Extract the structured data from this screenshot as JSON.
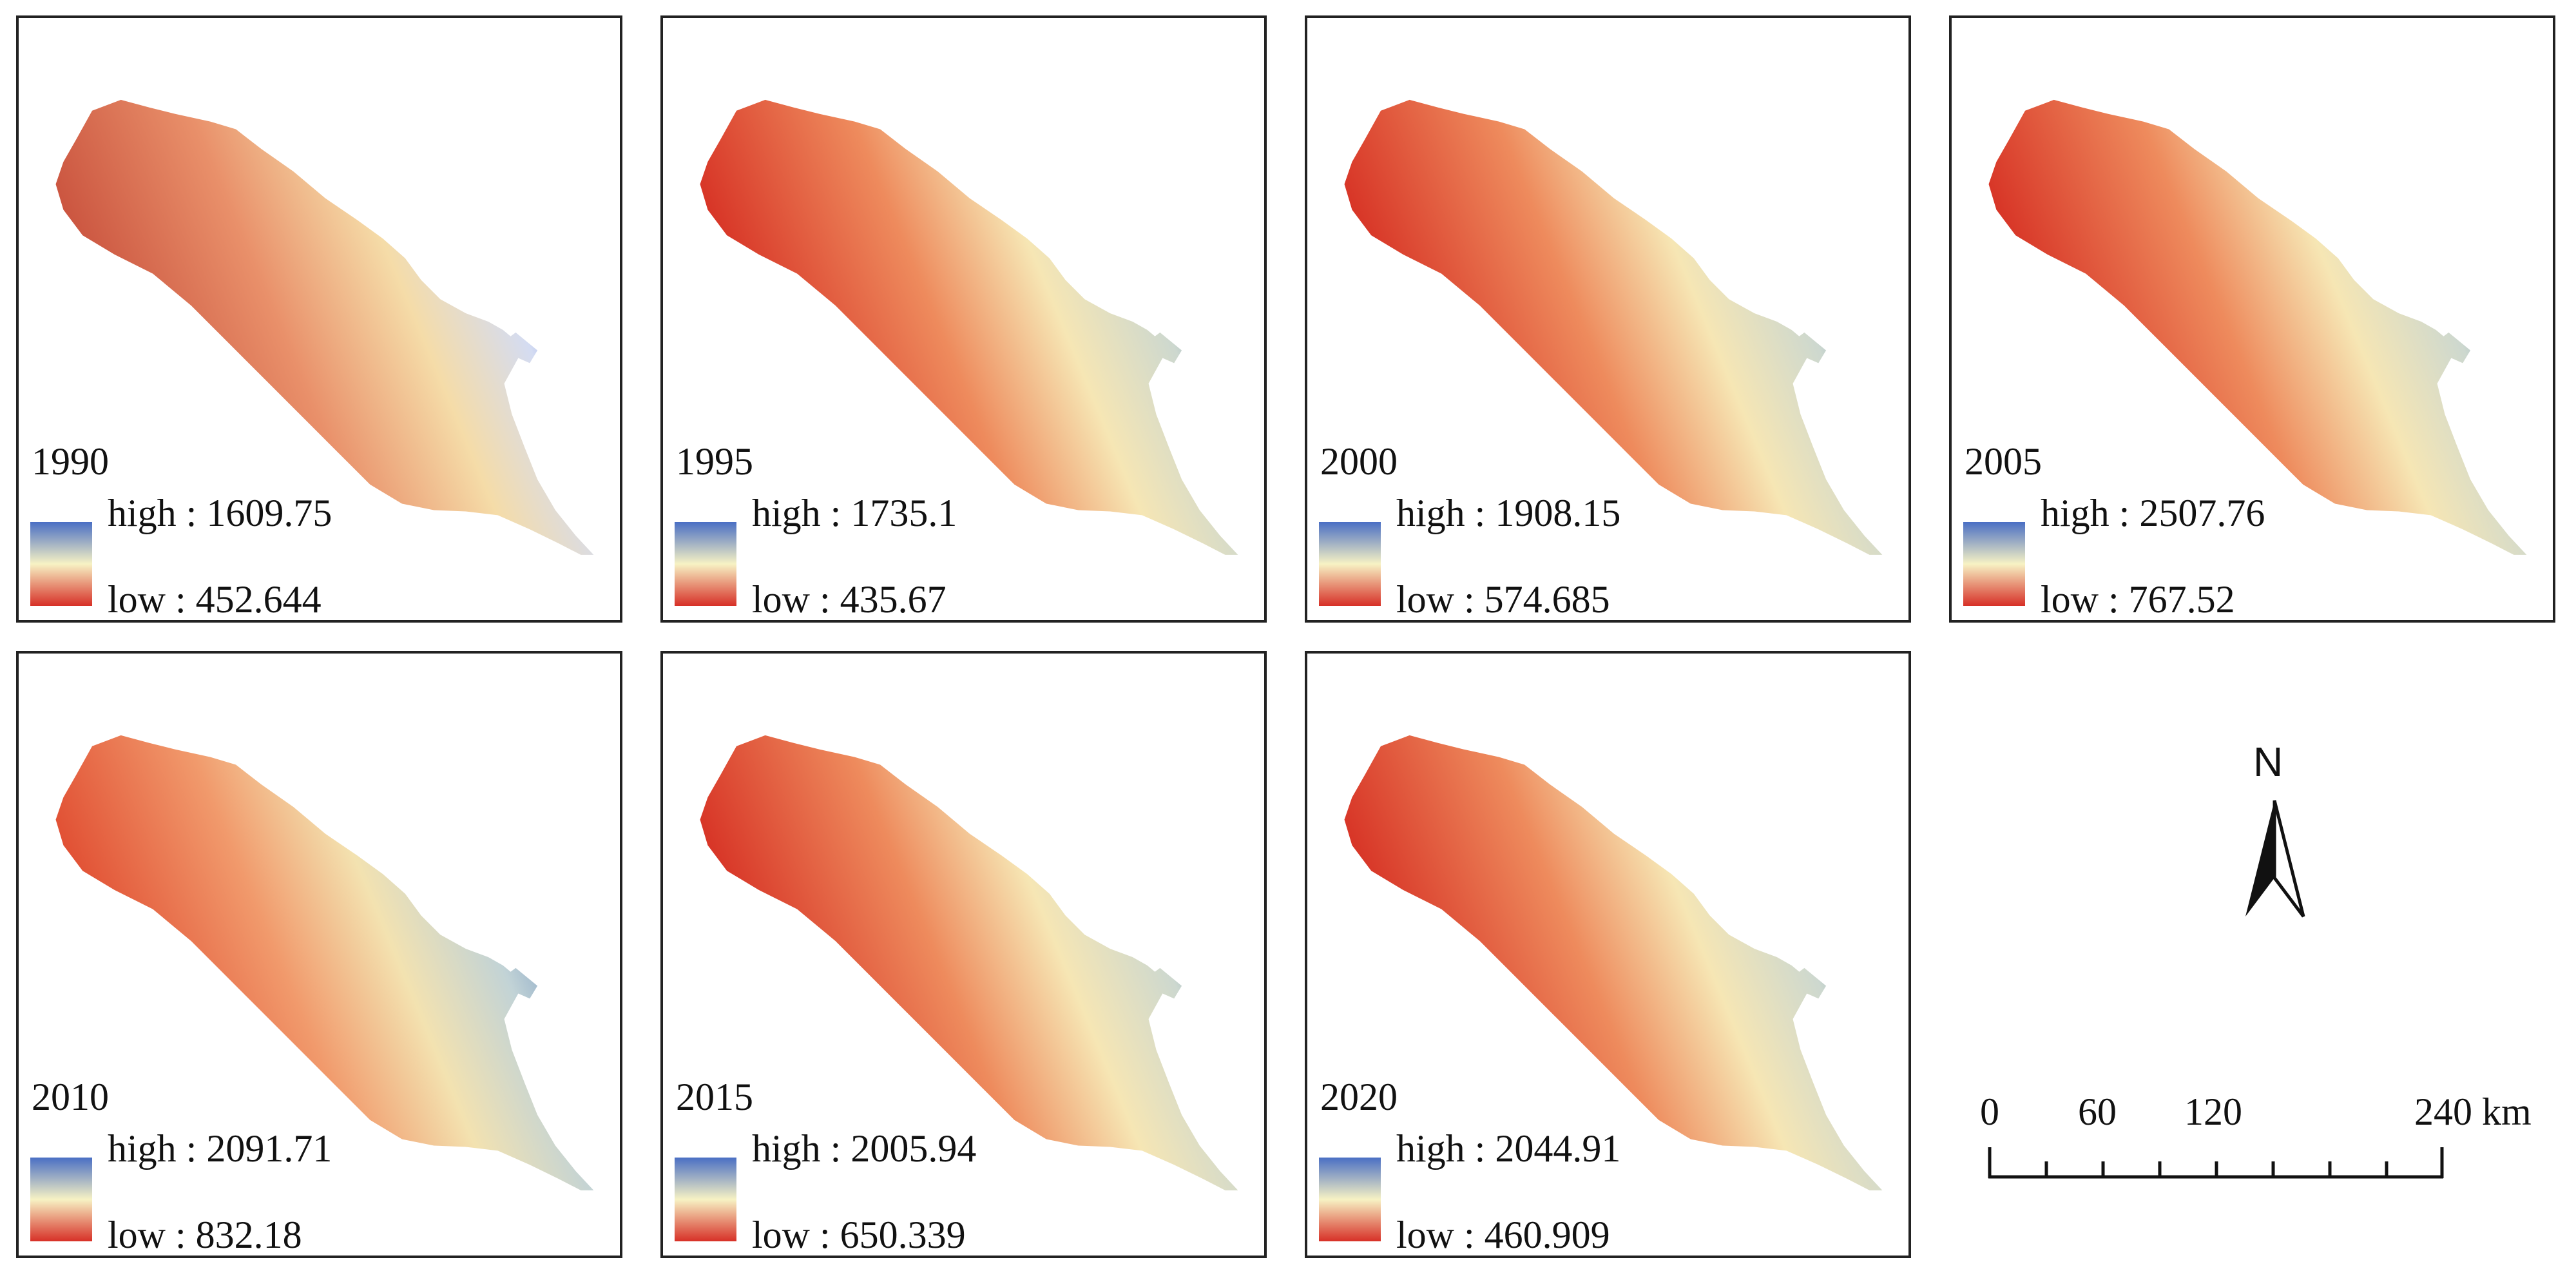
{
  "colors": {
    "low": "#d73027",
    "mid": "#f7f2c4",
    "high": "#4a6fc4",
    "border": "#222222"
  },
  "panels": [
    {
      "year": "1990",
      "high_label": "high : 1609.75",
      "low_label": "low : 452.644",
      "scheme": "a"
    },
    {
      "year": "1995",
      "high_label": "high : 1735.1",
      "low_label": "low : 435.67",
      "scheme": "b"
    },
    {
      "year": "2000",
      "high_label": "high : 1908.15",
      "low_label": "low : 574.685",
      "scheme": "b"
    },
    {
      "year": "2005",
      "high_label": "high : 2507.76",
      "low_label": "low : 767.52",
      "scheme": "b"
    },
    {
      "year": "2010",
      "high_label": "high : 2091.71",
      "low_label": "low : 832.18",
      "scheme": "c"
    },
    {
      "year": "2015",
      "high_label": "high : 2005.94",
      "low_label": "low : 650.339",
      "scheme": "b"
    },
    {
      "year": "2020",
      "high_label": "high : 2044.91",
      "low_label": "low : 460.909",
      "scheme": "b"
    }
  ],
  "north_arrow": {
    "letter": "N",
    "icon": "north-arrow-icon"
  },
  "scale_bar": {
    "labels": [
      "0",
      "60",
      "120",
      "240 km"
    ]
  }
}
